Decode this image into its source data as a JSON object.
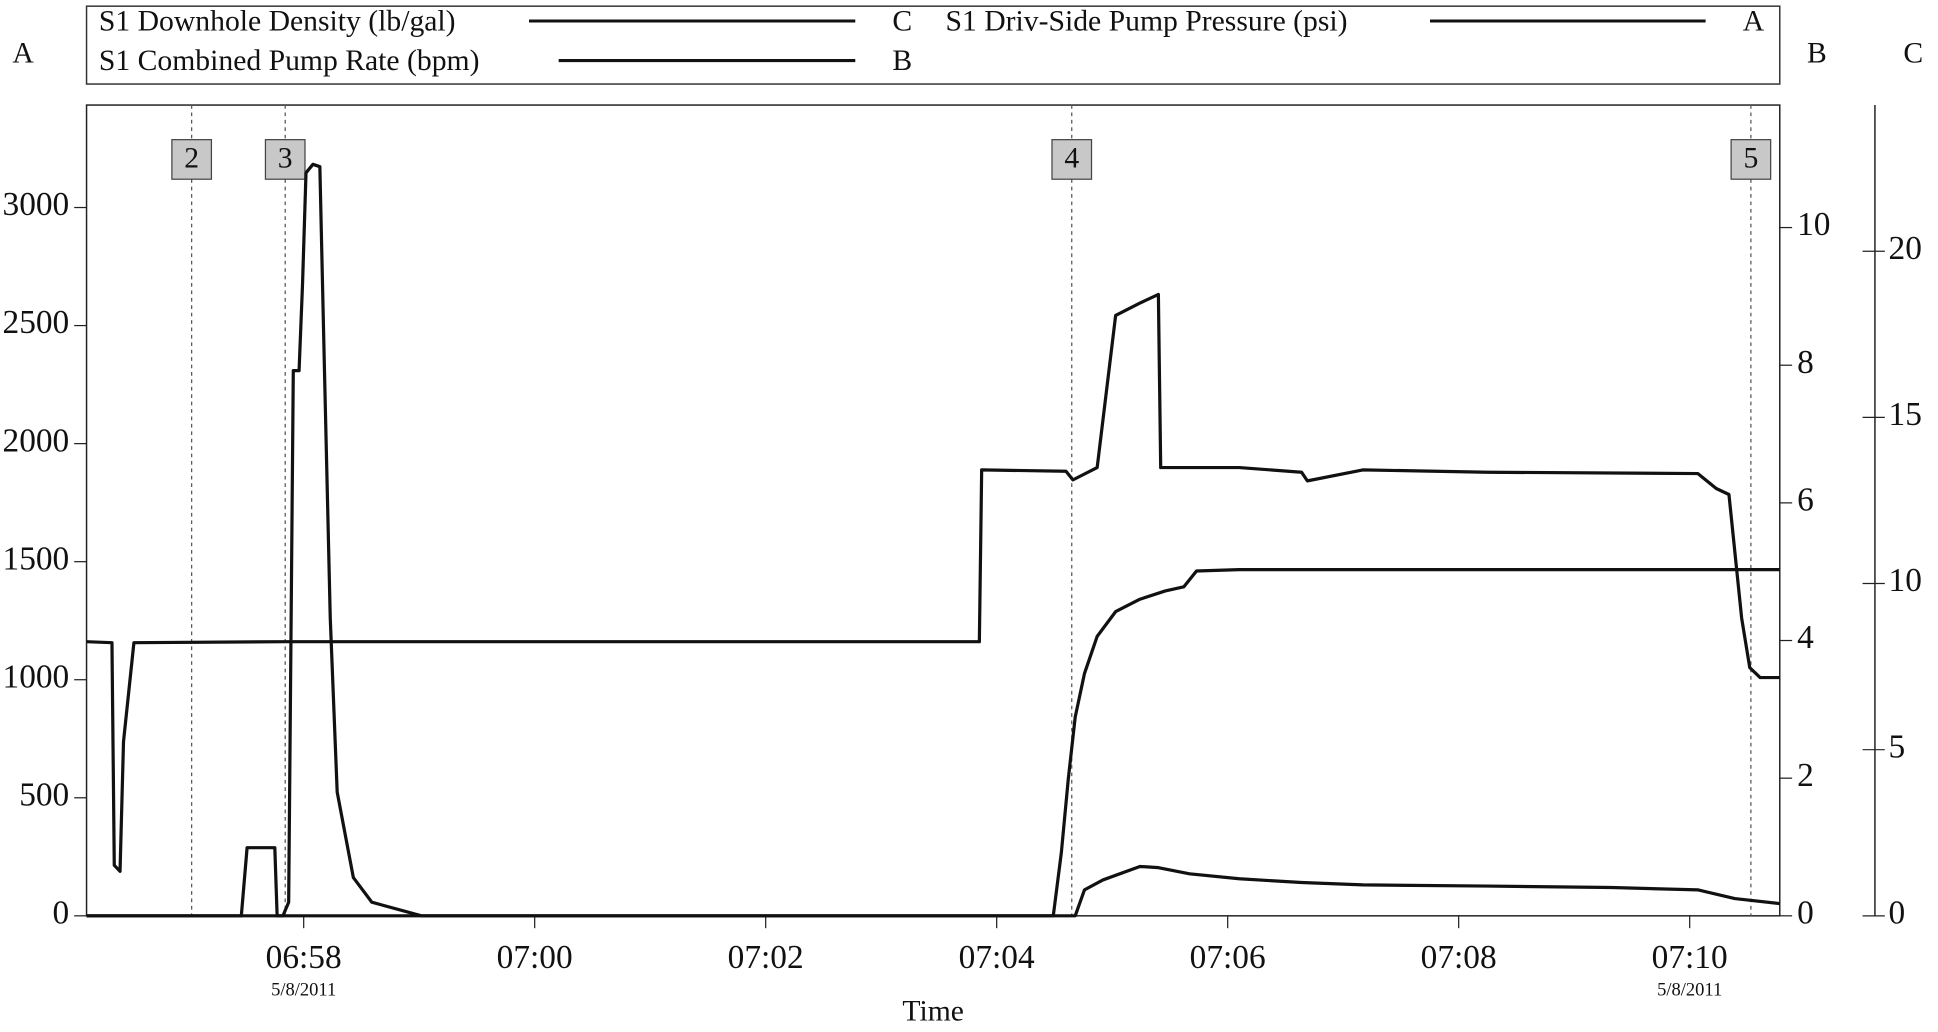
{
  "chart_data": {
    "type": "line",
    "x_label": "Time",
    "y_label": "A",
    "y2_label": "B",
    "y3_label": "C",
    "xlim": [
      416.12,
      430.78
    ],
    "xticks": [
      {
        "value": 418,
        "label": "06:58"
      },
      {
        "value": 420,
        "label": "07:00"
      },
      {
        "value": 422,
        "label": "07:02"
      },
      {
        "value": 424,
        "label": "07:04"
      },
      {
        "value": 426,
        "label": "07:06"
      },
      {
        "value": 428,
        "label": "07:08"
      },
      {
        "value": 430,
        "label": "07:10"
      }
    ],
    "date_labels": [
      {
        "value": 418,
        "label": "5/8/2011"
      },
      {
        "value": 430,
        "label": "5/8/2011"
      }
    ],
    "ylim": [
      0,
      3434
    ],
    "yticks": [
      0,
      500,
      1000,
      1500,
      2000,
      2500,
      3000
    ],
    "y2lim": [
      0,
      11.78
    ],
    "y2ticks": [
      0,
      2,
      4,
      6,
      8,
      10
    ],
    "y3lim": [
      0,
      24.4
    ],
    "y3ticks": [
      0,
      5,
      10,
      15,
      20
    ],
    "events": [
      {
        "label": "2",
        "x": 417.03
      },
      {
        "label": "3",
        "x": 417.84
      },
      {
        "label": "4",
        "x": 424.65
      },
      {
        "label": "5",
        "x": 430.53
      }
    ],
    "series": [
      {
        "name": "S1 Downhole Density (lb/gal)",
        "color": "#111111",
        "axis": "y3",
        "x": [
          416.12,
          416.34,
          416.36,
          416.41,
          416.44,
          416.53,
          417.84,
          419.66,
          421.81,
          423.85,
          423.87,
          424.6,
          424.66,
          424.87,
          425.03,
          425.24,
          425.4,
          425.42,
          426.1,
          426.64,
          426.69,
          427.17,
          428.25,
          430.07,
          430.23,
          430.34,
          430.45,
          430.52,
          430.61,
          430.78
        ],
        "values": [
          8.25,
          8.22,
          1.52,
          1.34,
          5.24,
          8.22,
          8.25,
          8.25,
          8.25,
          8.25,
          13.42,
          13.38,
          13.12,
          13.49,
          18.07,
          18.44,
          18.7,
          13.49,
          13.49,
          13.35,
          13.09,
          13.42,
          13.35,
          13.31,
          12.86,
          12.68,
          8.96,
          7.47,
          7.17,
          7.17
        ]
      },
      {
        "name": "S1 Driv-Side Pump Pressure (psi)",
        "color": "#111111",
        "axis": "y",
        "x": [
          416.12,
          417.82,
          417.87,
          417.91,
          417.96,
          417.99,
          418.02,
          418.08,
          418.14,
          418.18,
          418.23,
          418.29,
          418.43,
          418.59,
          419.02,
          424.54,
          424.68,
          424.76,
          424.92,
          425.24,
          425.4,
          425.67,
          426.1,
          426.64,
          427.17,
          428.25,
          429.32,
          430.07,
          430.39,
          430.78
        ],
        "values": [
          0,
          0,
          57.6,
          2309,
          2309,
          2675,
          3147,
          3183,
          3173,
          2309,
          1262,
          524,
          162,
          57.6,
          0,
          0,
          0,
          110,
          152,
          209,
          204,
          178,
          157,
          141,
          131,
          126,
          120,
          110,
          73,
          52
        ]
      },
      {
        "name": "S1 Combined Pump Rate (bpm)",
        "color": "#111111",
        "axis": "y2",
        "x": [
          416.12,
          417.46,
          417.51,
          417.75,
          417.77,
          424.49,
          424.56,
          424.62,
          424.68,
          424.76,
          424.87,
          425.03,
          425.24,
          425.46,
          425.62,
          425.73,
          426.1,
          430.78
        ],
        "values": [
          0,
          0,
          0.99,
          0.99,
          0,
          0,
          0.92,
          1.99,
          2.89,
          3.52,
          4.06,
          4.42,
          4.6,
          4.72,
          4.78,
          5.01,
          5.03,
          5.03
        ]
      }
    ]
  }
}
